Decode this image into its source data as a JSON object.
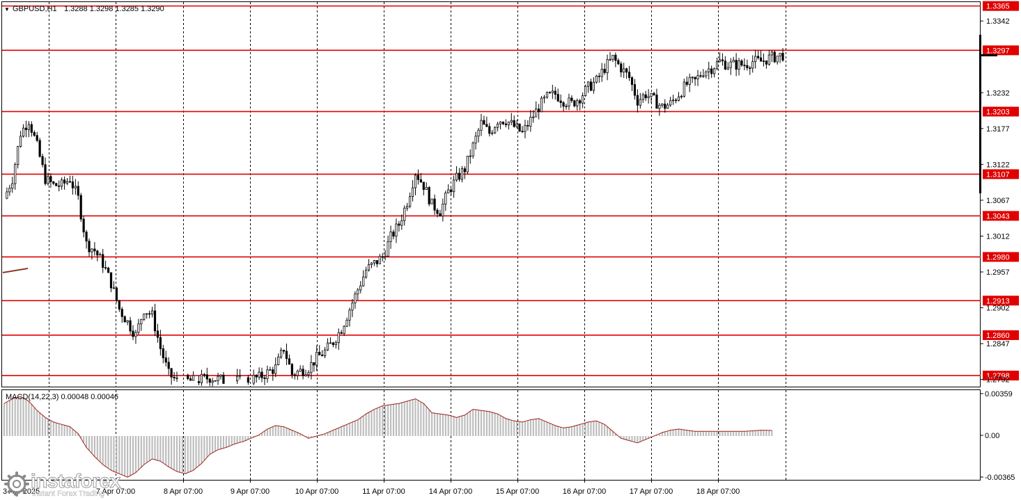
{
  "header": {
    "symbol_label": "GBPUSD,H1",
    "ohlc_label": "1.3288 1.3298 1.3285 1.3290",
    "menu_triangle": "▼"
  },
  "price_axis": {
    "ticks": [
      "1.3342",
      "1.3232",
      "1.3177",
      "1.3122",
      "1.3067",
      "1.3012",
      "1.2957",
      "1.2902",
      "1.2847",
      "1.2792"
    ]
  },
  "levels": {
    "color": "#e00000",
    "values": [
      "1.3365",
      "1.3297",
      "1.3203",
      "1.3107",
      "1.3043",
      "1.2980",
      "1.2913",
      "1.2860",
      "1.2798"
    ]
  },
  "current_price": "1.3290",
  "macd": {
    "label": "MACD(14,22,3) 0.00048 0.00046",
    "axis_ticks": [
      "0.00359",
      "0.00",
      "-0.00365"
    ]
  },
  "time_axis": {
    "first_partial": "3 Apr 2025",
    "labels": [
      "7 Apr 07:00",
      "8 Apr 07:00",
      "9 Apr 07:00",
      "10 Apr 07:00",
      "11 Apr 07:00",
      "14 Apr 07:00",
      "15 Apr 07:00",
      "16 Apr 07:00",
      "17 Apr 07:00",
      "18 Apr 07:00"
    ]
  },
  "watermark": {
    "brand": "instaforex",
    "tagline": "Instant Forex Trading"
  },
  "chart_data": [
    {
      "type": "candlestick",
      "title": "GBPUSD,H1",
      "ylim": [
        1.2781,
        1.3371
      ],
      "y_ticks": [
        1.3342,
        1.3232,
        1.3177,
        1.3122,
        1.3067,
        1.3012,
        1.2957,
        1.2902,
        1.2847,
        1.2792
      ],
      "x_ticks": [
        "7 Apr 07:00",
        "8 Apr 07:00",
        "9 Apr 07:00",
        "10 Apr 07:00",
        "11 Apr 07:00",
        "14 Apr 07:00",
        "15 Apr 07:00",
        "16 Apr 07:00",
        "17 Apr 07:00",
        "18 Apr 07:00"
      ],
      "horizontal_levels": [
        1.3365,
        1.3297,
        1.3203,
        1.3107,
        1.3043,
        1.298,
        1.2913,
        1.286,
        1.2798
      ],
      "grid": "dashed vertical day separators",
      "close_path": [
        [
          0,
          1.307
        ],
        [
          3,
          1.31
        ],
        [
          6,
          1.317
        ],
        [
          9,
          1.319
        ],
        [
          12,
          1.315
        ],
        [
          15,
          1.31
        ],
        [
          18,
          1.309
        ],
        [
          21,
          1.309
        ],
        [
          24,
          1.31
        ],
        [
          27,
          1.307
        ],
        [
          30,
          1.3
        ],
        [
          33,
          1.299
        ],
        [
          36,
          1.297
        ],
        [
          39,
          1.294
        ],
        [
          42,
          1.29
        ],
        [
          45,
          1.288
        ],
        [
          48,
          1.286
        ],
        [
          51,
          1.29
        ],
        [
          54,
          1.289
        ],
        [
          57,
          1.284
        ],
        [
          60,
          1.28
        ],
        [
          63,
          1.279
        ],
        [
          69,
          1.279
        ],
        [
          75,
          1.2795
        ],
        [
          81,
          1.279
        ],
        [
          87,
          1.279
        ],
        [
          93,
          1.2795
        ],
        [
          99,
          1.281
        ],
        [
          102,
          1.284
        ],
        [
          105,
          1.28
        ],
        [
          111,
          1.281
        ],
        [
          114,
          1.2825
        ],
        [
          117,
          1.2835
        ],
        [
          120,
          1.285
        ],
        [
          123,
          1.287
        ],
        [
          126,
          1.29
        ],
        [
          129,
          1.293
        ],
        [
          132,
          1.296
        ],
        [
          135,
          1.297
        ],
        [
          138,
          1.298
        ],
        [
          141,
          1.301
        ],
        [
          144,
          1.303
        ],
        [
          147,
          1.3065
        ],
        [
          150,
          1.311
        ],
        [
          153,
          1.309
        ],
        [
          156,
          1.306
        ],
        [
          159,
          1.305
        ],
        [
          162,
          1.308
        ],
        [
          165,
          1.31
        ],
        [
          168,
          1.3115
        ],
        [
          171,
          1.315
        ],
        [
          174,
          1.3185
        ],
        [
          177,
          1.317
        ],
        [
          180,
          1.319
        ],
        [
          183,
          1.319
        ],
        [
          186,
          1.318
        ],
        [
          189,
          1.317
        ],
        [
          192,
          1.319
        ],
        [
          195,
          1.321
        ],
        [
          198,
          1.3225
        ],
        [
          201,
          1.323
        ],
        [
          204,
          1.322
        ],
        [
          207,
          1.3215
        ],
        [
          210,
          1.3225
        ],
        [
          213,
          1.324
        ],
        [
          216,
          1.325
        ],
        [
          219,
          1.327
        ],
        [
          222,
          1.3285
        ],
        [
          225,
          1.327
        ],
        [
          228,
          1.3255
        ],
        [
          231,
          1.322
        ],
        [
          234,
          1.323
        ],
        [
          237,
          1.322
        ],
        [
          240,
          1.321
        ],
        [
          243,
          1.3215
        ],
        [
          246,
          1.323
        ],
        [
          249,
          1.3245
        ],
        [
          252,
          1.325
        ],
        [
          255,
          1.3265
        ],
        [
          258,
          1.327
        ],
        [
          261,
          1.328
        ],
        [
          264,
          1.3275
        ],
        [
          267,
          1.3275
        ],
        [
          270,
          1.3275
        ],
        [
          273,
          1.328
        ],
        [
          276,
          1.328
        ],
        [
          279,
          1.3285
        ],
        [
          282,
          1.3288
        ],
        [
          284,
          1.329
        ]
      ]
    },
    {
      "type": "bar",
      "title": "MACD(14,22,3)",
      "series": [
        {
          "name": "MACD",
          "values_path": [
            [
              0,
              0.0028
            ],
            [
              3,
              0.0032
            ],
            [
              6,
              0.0034
            ],
            [
              9,
              0.003
            ],
            [
              12,
              0.0022
            ],
            [
              15,
              0.0016
            ],
            [
              18,
              0.0012
            ],
            [
              21,
              0.001
            ],
            [
              24,
              0.0008
            ],
            [
              27,
              0.0002
            ],
            [
              30,
              -0.001
            ],
            [
              33,
              -0.0018
            ],
            [
              36,
              -0.0025
            ],
            [
              39,
              -0.003
            ],
            [
              42,
              -0.0033
            ],
            [
              45,
              -0.0036
            ],
            [
              48,
              -0.0032
            ],
            [
              51,
              -0.0025
            ],
            [
              54,
              -0.002
            ],
            [
              57,
              -0.0022
            ],
            [
              60,
              -0.0027
            ],
            [
              63,
              -0.0031
            ],
            [
              66,
              -0.0033
            ],
            [
              69,
              -0.003
            ],
            [
              72,
              -0.0024
            ],
            [
              75,
              -0.0016
            ],
            [
              78,
              -0.0012
            ],
            [
              81,
              -0.001
            ],
            [
              84,
              -0.0007
            ],
            [
              87,
              -0.0005
            ],
            [
              90,
              -0.0002
            ],
            [
              93,
              0.0001
            ],
            [
              96,
              0.0006
            ],
            [
              99,
              0.0009
            ],
            [
              102,
              0.0008
            ],
            [
              105,
              0.0005
            ],
            [
              108,
              0.0002
            ],
            [
              111,
              -0.0002
            ],
            [
              114,
              0.0
            ],
            [
              117,
              0.0002
            ],
            [
              120,
              0.0005
            ],
            [
              123,
              0.0008
            ],
            [
              126,
              0.0011
            ],
            [
              129,
              0.0014
            ],
            [
              132,
              0.0019
            ],
            [
              135,
              0.0023
            ],
            [
              138,
              0.0026
            ],
            [
              141,
              0.0027
            ],
            [
              144,
              0.0028
            ],
            [
              147,
              0.003
            ],
            [
              150,
              0.0032
            ],
            [
              153,
              0.0028
            ],
            [
              156,
              0.002
            ],
            [
              159,
              0.0019
            ],
            [
              162,
              0.0018
            ],
            [
              165,
              0.0016
            ],
            [
              168,
              0.0018
            ],
            [
              171,
              0.0023
            ],
            [
              174,
              0.0022
            ],
            [
              177,
              0.0021
            ],
            [
              180,
              0.0019
            ],
            [
              183,
              0.0015
            ],
            [
              186,
              0.0013
            ],
            [
              189,
              0.0012
            ],
            [
              192,
              0.0014
            ],
            [
              195,
              0.0015
            ],
            [
              198,
              0.0012
            ],
            [
              201,
              0.0009
            ],
            [
              204,
              0.0007
            ],
            [
              207,
              0.0008
            ],
            [
              210,
              0.001
            ],
            [
              213,
              0.0012
            ],
            [
              216,
              0.0013
            ],
            [
              219,
              0.001
            ],
            [
              222,
              0.0004
            ],
            [
              225,
              -0.0002
            ],
            [
              228,
              -0.0004
            ],
            [
              231,
              -0.0006
            ],
            [
              234,
              -0.0003
            ],
            [
              237,
              0.0
            ],
            [
              240,
              0.0003
            ],
            [
              243,
              0.0005
            ],
            [
              246,
              0.0006
            ],
            [
              249,
              0.0005
            ],
            [
              252,
              0.0004
            ],
            [
              258,
              0.0004
            ],
            [
              264,
              0.0004
            ],
            [
              270,
              0.0004
            ],
            [
              276,
              0.0005
            ],
            [
              280,
              0.00048
            ]
          ]
        }
      ],
      "ylim": [
        -0.00365,
        0.00359
      ]
    }
  ]
}
